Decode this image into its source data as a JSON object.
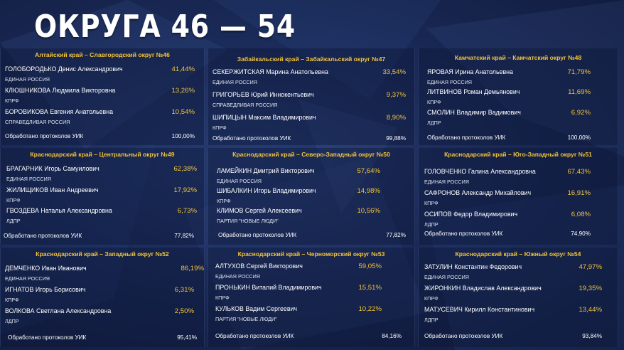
{
  "title": "ОКРУГА 46 — 54",
  "protocols_label": "Обработано протоколов УИК",
  "districts": [
    {
      "name": "Алтайский край – Славгородский округ №46",
      "candidates": [
        {
          "name": "ГОЛОБОРОДЬКО Денис Александрович",
          "party": "ЕДИНАЯ РОССИЯ",
          "percent": "41,44%"
        },
        {
          "name": "КЛЮШНИКОВА Людмила Викторовна",
          "party": "КПРФ",
          "percent": "13,26%"
        },
        {
          "name": "БОРОВИКОВА Евгения Анатольевна",
          "party": "СПРАВЕДЛИВАЯ РОССИЯ",
          "percent": "10,54%"
        }
      ],
      "protocols": "100,00%"
    },
    {
      "name": "Забайкальский край – Забайкальский округ №47",
      "candidates": [
        {
          "name": "СЕКЕРЖИТСКАЯ Марина Анатольевна",
          "party": "ЕДИНАЯ РОССИЯ",
          "percent": "33,54%"
        },
        {
          "name": "ГРИГОРЬЕВ Юрий Иннокентьевич",
          "party": "СПРАВЕДЛИВАЯ РОССИЯ",
          "percent": "9,37%"
        },
        {
          "name": "ШИПИЦЫН Максим Владимирович",
          "party": "КПРФ",
          "percent": "8,90%"
        }
      ],
      "protocols": "99,88%"
    },
    {
      "name": "Камчатский край – Камчатский округ №48",
      "candidates": [
        {
          "name": "ЯРОВАЯ Ирина Анатольевна",
          "party": "ЕДИНАЯ РОССИЯ",
          "percent": "71,79%"
        },
        {
          "name": "ЛИТВИНОВ Роман Демьянович",
          "party": "КПРФ",
          "percent": "11,69%"
        },
        {
          "name": "СМОЛИН Владимир Вадимович",
          "party": "ЛДПР",
          "percent": "6,92%"
        }
      ],
      "protocols": "100,00%"
    },
    {
      "name": "Краснодарский край – Центральный округ №49",
      "candidates": [
        {
          "name": "БРАГАРНИК Игорь Самуилович",
          "party": "ЕДИНАЯ РОССИЯ",
          "percent": "62,38%"
        },
        {
          "name": "ЖИЛИЩИКОВ Иван Андреевич",
          "party": "КПРФ",
          "percent": "17,92%"
        },
        {
          "name": "ГВОЗДЕВА Наталья Александровна",
          "party": "ЛДПР",
          "percent": "6,73%"
        }
      ],
      "protocols": "77,82%"
    },
    {
      "name": "Краснодарский край – Северо-Западный округ №50",
      "candidates": [
        {
          "name": "ЛАМЕЙКИН Дмитрий Викторович",
          "party": "ЕДИНАЯ РОССИЯ",
          "percent": "57,64%"
        },
        {
          "name": "ШИБАЛКИН Игорь Владимирович",
          "party": "КПРФ",
          "percent": "14,98%"
        },
        {
          "name": "КЛИМОВ Сергей Алексеевич",
          "party": "ПАРТИЯ \"НОВЫЕ ЛЮДИ\"",
          "percent": "10,56%"
        }
      ],
      "protocols": "77,82%"
    },
    {
      "name": "Краснодарский край – Юго-Западный округ №51",
      "candidates": [
        {
          "name": "ГОЛОВЧЕНКО Галина Александровна",
          "party": "ЕДИНАЯ РОССИЯ",
          "percent": "67,43%"
        },
        {
          "name": "САФРОНОВ Александр Михайлович",
          "party": "КПРФ",
          "percent": "16,91%"
        },
        {
          "name": "ОСИПОВ Федор Владимирович",
          "party": "ЛДПР",
          "percent": "6,08%"
        }
      ],
      "protocols": "74,90%"
    },
    {
      "name": "Краснодарский край – Западный округ №52",
      "candidates": [
        {
          "name": "ДЕМЧЕНКО Иван Иванович",
          "party": "ЕДИНАЯ РОССИЯ",
          "percent": "86,19%"
        },
        {
          "name": "ИГНАТОВ Игорь Борисович",
          "party": "КПРФ",
          "percent": "6,31%"
        },
        {
          "name": "ВОЛКОВА Светлана Александровна",
          "party": "ЛДПР",
          "percent": "2,50%"
        }
      ],
      "protocols": "95,41%"
    },
    {
      "name": "Краснодарский край – Черноморский округ №53",
      "candidates": [
        {
          "name": "АЛТУХОВ Сергей Викторович",
          "party": "ЕДИНАЯ РОССИЯ",
          "percent": "59,05%"
        },
        {
          "name": "ПРОНЬКИН Виталий Владимирович",
          "party": "КПРФ",
          "percent": "15,51%"
        },
        {
          "name": "КУЛЬКОВ Вадим Сергеевич",
          "party": "ПАРТИЯ \"НОВЫЕ ЛЮДИ\"",
          "percent": "10,22%"
        }
      ],
      "protocols": "84,16%"
    },
    {
      "name": "Краснодарский край – Южный округ №54",
      "candidates": [
        {
          "name": "ЗАТУЛИН Константин Федорович",
          "party": "ЕДИНАЯ РОССИЯ",
          "percent": "47,97%"
        },
        {
          "name": "ЖИРОНКИН Владислав Александрович",
          "party": "КПРФ",
          "percent": "19,35%"
        },
        {
          "name": "МАТУСЕВИЧ Кирилл Константинович",
          "party": "ЛДПР",
          "percent": "13,44%"
        }
      ],
      "protocols": "93,84%"
    }
  ]
}
